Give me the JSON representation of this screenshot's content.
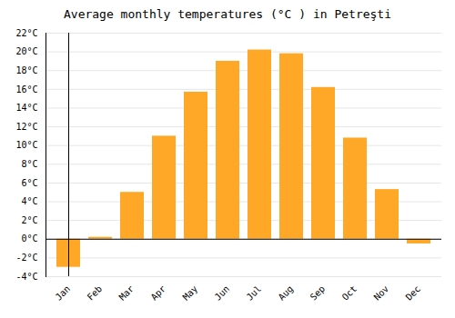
{
  "chart_data": {
    "type": "bar",
    "title": "Average monthly temperatures (°C ) in Petreşti",
    "categories": [
      "Jan",
      "Feb",
      "Mar",
      "Apr",
      "May",
      "Jun",
      "Jul",
      "Aug",
      "Sep",
      "Oct",
      "Nov",
      "Dec"
    ],
    "values": [
      -3.0,
      0.2,
      5.0,
      11.0,
      15.7,
      19.0,
      20.2,
      19.8,
      16.2,
      10.8,
      5.3,
      -0.5
    ],
    "color": "#FFA726",
    "ylim": [
      -4,
      22
    ],
    "yticks": [
      {
        "value": -4,
        "label": "-4°C"
      },
      {
        "value": -2,
        "label": "-2°C"
      },
      {
        "value": 0,
        "label": "0°C"
      },
      {
        "value": 2,
        "label": "2°C"
      },
      {
        "value": 4,
        "label": "4°C"
      },
      {
        "value": 6,
        "label": "6°C"
      },
      {
        "value": 8,
        "label": "8°C"
      },
      {
        "value": 10,
        "label": "10°C"
      },
      {
        "value": 12,
        "label": "12°C"
      },
      {
        "value": 14,
        "label": "14°C"
      },
      {
        "value": 16,
        "label": "16°C"
      },
      {
        "value": 18,
        "label": "18°C"
      },
      {
        "value": 20,
        "label": "20°C"
      },
      {
        "value": 22,
        "label": "22°C"
      }
    ],
    "grid": true
  }
}
